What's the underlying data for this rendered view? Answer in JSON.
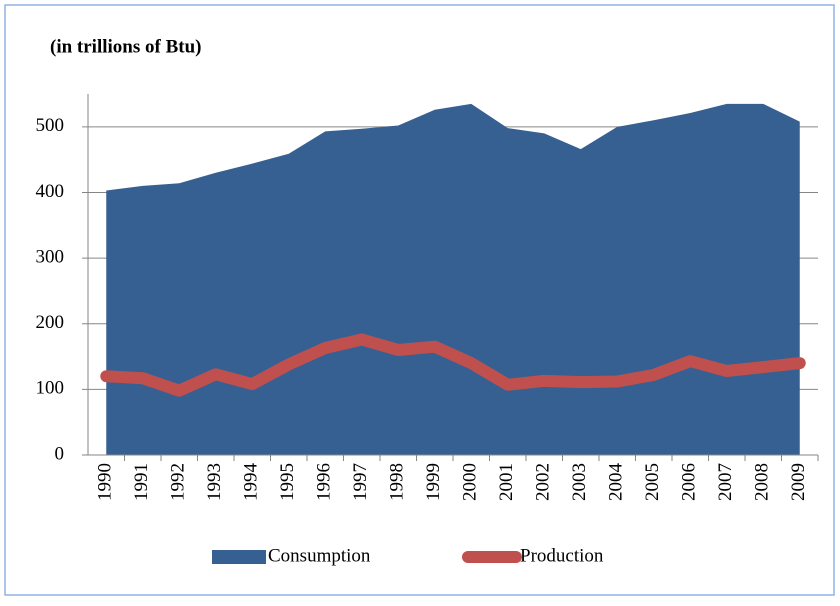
{
  "chart_data": {
    "type": "area",
    "title": "(in trillions of Btu)",
    "categories": [
      "1990",
      "1991",
      "1992",
      "1993",
      "1994",
      "1995",
      "1996",
      "1997",
      "1998",
      "1999",
      "2000",
      "2001",
      "2002",
      "2003",
      "2004",
      "2005",
      "2006",
      "2007",
      "2008",
      "2009"
    ],
    "series": [
      {
        "name": "Consumption",
        "type": "area",
        "color": "#376092",
        "values": [
          403,
          410,
          414,
          430,
          444,
          459,
          493,
          497,
          502,
          526,
          535,
          498,
          490,
          466,
          500,
          510,
          521,
          535,
          535,
          508
        ]
      },
      {
        "name": "Production",
        "type": "line",
        "color": "#c0504d",
        "values": [
          120,
          117,
          98,
          123,
          108,
          138,
          163,
          176,
          160,
          165,
          140,
          107,
          113,
          111,
          112,
          122,
          143,
          128,
          134,
          140
        ]
      }
    ],
    "ylim": [
      0,
      550
    ],
    "yticks": [
      0,
      100,
      200,
      300,
      400,
      500
    ],
    "grid": true,
    "legend": "bottom"
  }
}
